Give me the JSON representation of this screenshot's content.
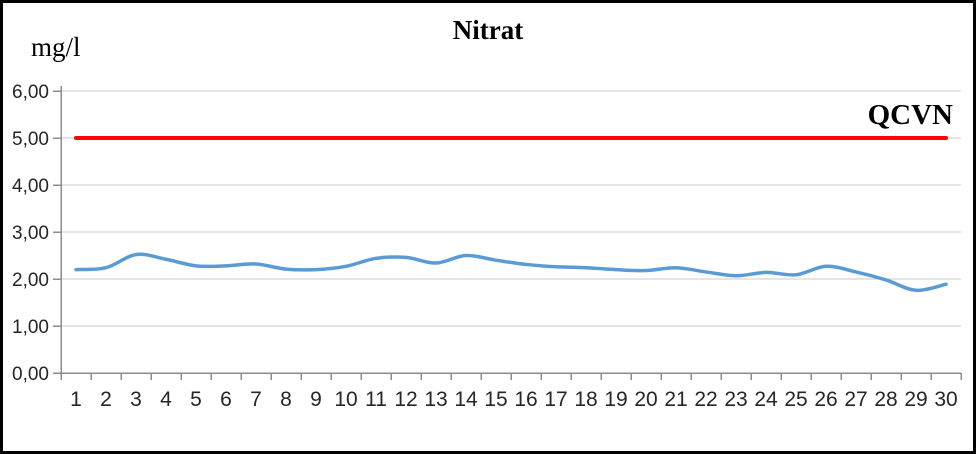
{
  "chart_data": {
    "type": "line",
    "title": "Nitrat",
    "y_unit_label": "mg/l",
    "xlabel": "",
    "ylabel": "mg/l",
    "categories": [
      1,
      2,
      3,
      4,
      5,
      6,
      7,
      8,
      9,
      10,
      11,
      12,
      13,
      14,
      15,
      16,
      17,
      18,
      19,
      20,
      21,
      22,
      23,
      24,
      25,
      26,
      27,
      28,
      29,
      30
    ],
    "series": [
      {
        "name": "Nitrat",
        "color": "#5B9BD5",
        "style": "smooth-line",
        "stroke_width": 3.5,
        "values": [
          2.2,
          2.24,
          2.52,
          2.42,
          2.28,
          2.28,
          2.32,
          2.21,
          2.2,
          2.27,
          2.44,
          2.46,
          2.34,
          2.5,
          2.4,
          2.31,
          2.26,
          2.24,
          2.2,
          2.18,
          2.24,
          2.15,
          2.07,
          2.14,
          2.09,
          2.27,
          2.15,
          1.98,
          1.76,
          1.89
        ]
      },
      {
        "name": "QCVN",
        "color": "#FF0000",
        "style": "straight-line",
        "stroke_width": 4,
        "constant_value": 5.0
      }
    ],
    "annotation": {
      "text": "QCVN",
      "at_value": 5.0,
      "position": "top-right-above-line"
    },
    "ylim": [
      0,
      6
    ],
    "y_major_unit": 1.0,
    "ytick_labels": [
      "0,00",
      "1,00",
      "2,00",
      "3,00",
      "4,00",
      "5,00",
      "6,00"
    ],
    "grid": {
      "horizontal": true,
      "vertical": false
    },
    "legend_position": "none",
    "colors": {
      "gridline": "#C9C9C9",
      "axis": "#8C8C8C",
      "tick_text": "#262626",
      "background": "#FFFFFF",
      "border": "#000000"
    }
  }
}
